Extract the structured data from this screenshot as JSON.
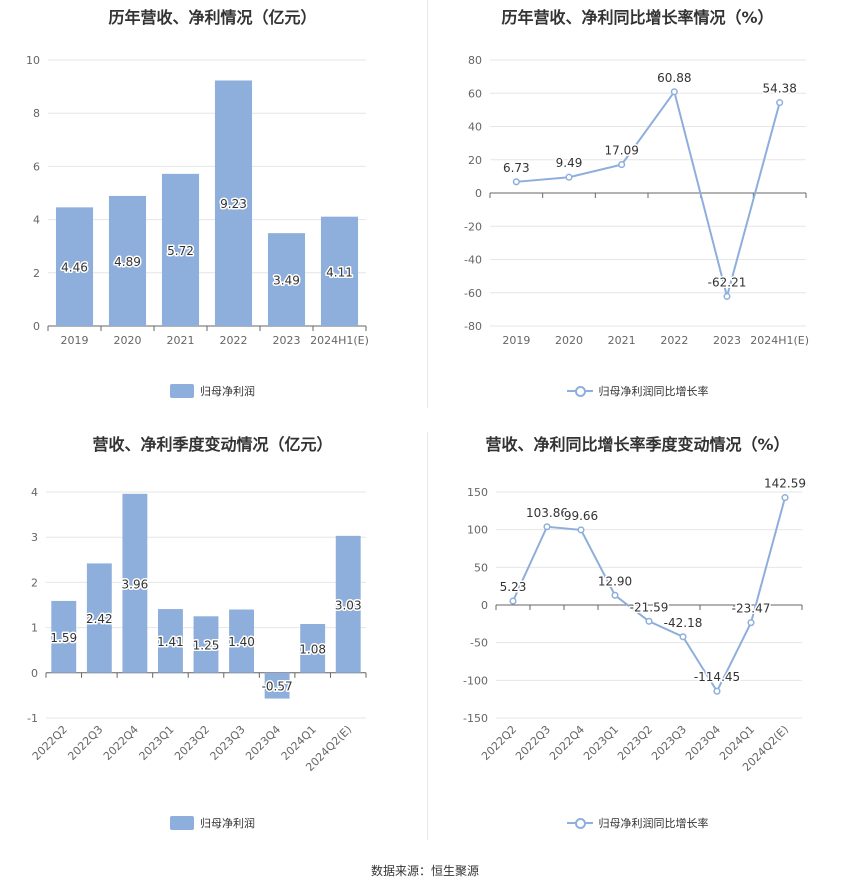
{
  "source": "数据来源：恒生聚源",
  "colors": {
    "bar": "#8eaedc",
    "line": "#8eaedc",
    "grid": "#e6e6e6",
    "axis": "#666666"
  },
  "chart_data": [
    {
      "type": "bar",
      "title": "历年营收、净利情况（亿元）",
      "categories": [
        "2019",
        "2020",
        "2021",
        "2022",
        "2023",
        "2024H1(E)"
      ],
      "series": [
        {
          "name": "归母净利润",
          "values": [
            4.46,
            4.89,
            5.72,
            9.23,
            3.49,
            4.11
          ]
        }
      ],
      "ylim": [
        0,
        10
      ],
      "yticks": [
        0,
        2,
        4,
        6,
        8,
        10
      ],
      "grid": true,
      "legend": "bottom"
    },
    {
      "type": "line",
      "title": "历年营收、净利同比增长率情况（%）",
      "categories": [
        "2019",
        "2020",
        "2021",
        "2022",
        "2023",
        "2024H1(E)"
      ],
      "series": [
        {
          "name": "归母净利润同比增长率",
          "values": [
            6.73,
            9.49,
            17.09,
            60.88,
            -62.21,
            54.38
          ]
        }
      ],
      "ylim": [
        -80,
        80
      ],
      "yticks": [
        -80,
        -60,
        -40,
        -20,
        0,
        20,
        40,
        60,
        80
      ],
      "grid": true,
      "legend": "bottom"
    },
    {
      "type": "bar",
      "title": "营收、净利季度变动情况（亿元）",
      "categories": [
        "2022Q2",
        "2022Q3",
        "2022Q4",
        "2023Q1",
        "2023Q2",
        "2023Q3",
        "2023Q4",
        "2024Q1",
        "2024Q2(E)"
      ],
      "series": [
        {
          "name": "归母净利润",
          "values": [
            1.59,
            2.42,
            3.96,
            1.41,
            1.25,
            1.4,
            -0.57,
            1.08,
            3.03
          ]
        }
      ],
      "ylim": [
        -1,
        4
      ],
      "yticks": [
        -1,
        0,
        1,
        2,
        3,
        4
      ],
      "grid": true,
      "legend": "bottom"
    },
    {
      "type": "line",
      "title": "营收、净利同比增长率季度变动情况（%）",
      "categories": [
        "2022Q2",
        "2022Q3",
        "2022Q4",
        "2023Q1",
        "2023Q2",
        "2023Q3",
        "2023Q4",
        "2024Q1",
        "2024Q2(E)"
      ],
      "series": [
        {
          "name": "归母净利润同比增长率",
          "values": [
            5.23,
            103.86,
            99.66,
            12.9,
            -21.59,
            -42.18,
            -114.45,
            -23.47,
            142.59
          ]
        }
      ],
      "ylim": [
        -150,
        150
      ],
      "yticks": [
        -150,
        -100,
        -50,
        0,
        50,
        100,
        150
      ],
      "grid": true,
      "legend": "bottom"
    }
  ]
}
